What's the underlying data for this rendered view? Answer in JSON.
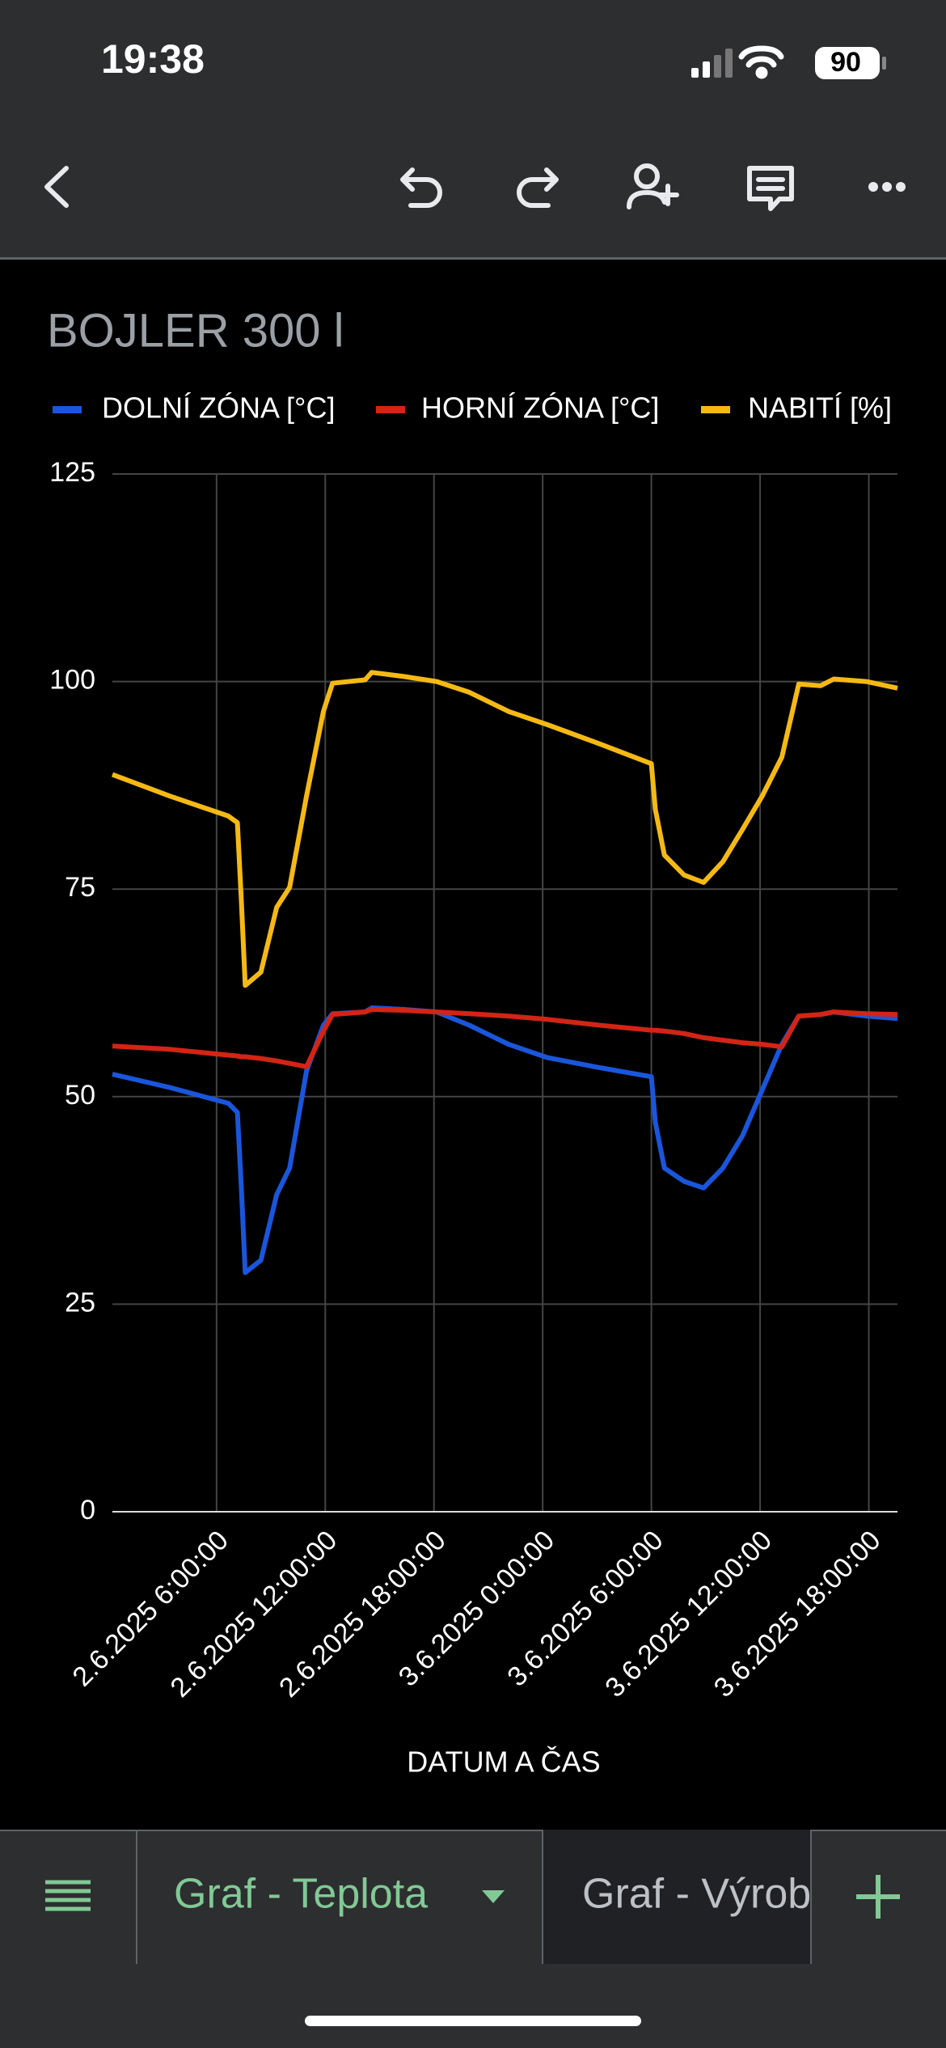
{
  "status_bar": {
    "time": "19:38",
    "battery": "90"
  },
  "chart_data": {
    "type": "line",
    "title": "BOJLER 300 l",
    "x_label": "DATUM A ČAS",
    "x": [
      "2025-06-02T00:15",
      "2025-06-02T03:25",
      "2025-06-02T06:39",
      "2025-06-02T07:09",
      "2025-06-02T07:22",
      "2025-06-02T07:35",
      "2025-06-02T08:27",
      "2025-06-02T09:19",
      "2025-06-02T10:02",
      "2025-06-02T10:58",
      "2025-06-02T11:54",
      "2025-06-02T12:24",
      "2025-06-02T14:12",
      "2025-06-02T14:34",
      "2025-06-02T16:21",
      "2025-06-02T18:09",
      "2025-06-02T19:57",
      "2025-06-02T22:07",
      "2025-06-03T00:16",
      "2025-06-03T03:08",
      "2025-06-03T06:00",
      "2025-06-03T06:13",
      "2025-06-03T06:43",
      "2025-06-03T07:48",
      "2025-06-03T08:53",
      "2025-06-03T09:57",
      "2025-06-03T11:02",
      "2025-06-03T12:07",
      "2025-06-03T13:12",
      "2025-06-03T14:08",
      "2025-06-03T15:21",
      "2025-06-03T16:04",
      "2025-06-03T17:52",
      "2025-06-03T19:35"
    ],
    "series": [
      {
        "name": "DOLNÍ ZÓNA [°C]",
        "color": "#1a56db",
        "values": [
          52.7,
          51.1,
          49.2,
          48.1,
          39,
          28.8,
          30.3,
          38.2,
          41.4,
          53.1,
          58.6,
          60,
          60.2,
          60.7,
          60.5,
          60.2,
          58.6,
          56.3,
          54.7,
          53.5,
          52.4,
          46.9,
          41.4,
          39.8,
          39,
          41.4,
          45.3,
          50.8,
          56.3,
          59.7,
          59.9,
          60.2,
          59.7,
          59.4
        ]
      },
      {
        "name": "HORNÍ ZÓNA [°C]",
        "color": "#d32415",
        "values": [
          56.1,
          55.7,
          55,
          54.9,
          54.8,
          54.8,
          54.6,
          54.3,
          54,
          53.6,
          57.9,
          59.9,
          60.2,
          60.5,
          60.4,
          60.2,
          60,
          59.7,
          59.3,
          58.6,
          58,
          58,
          57.9,
          57.6,
          57.1,
          56.8,
          56.5,
          56.3,
          56,
          59.7,
          59.9,
          60.2,
          60,
          59.9
        ]
      },
      {
        "name": "NABITÍ [%]",
        "color": "#f5b914",
        "values": [
          88.8,
          86.2,
          83.8,
          83,
          73.6,
          63.4,
          65,
          72.8,
          75.2,
          86.2,
          96.4,
          99.8,
          100.2,
          101.1,
          100.6,
          100,
          98.7,
          96.4,
          94.8,
          92.5,
          90.1,
          84.6,
          79.1,
          76.7,
          75.8,
          78.3,
          82.2,
          86.2,
          90.9,
          99.7,
          99.5,
          100.3,
          100,
          99.2
        ]
      }
    ],
    "xlim": [
      "2025-06-02T00:15",
      "2025-06-03T19:35"
    ],
    "xticks": [
      {
        "value": "2025-06-02T06:00",
        "label": "2.6.2025 6:00:00"
      },
      {
        "value": "2025-06-02T12:00",
        "label": "2.6.2025 12:00:00"
      },
      {
        "value": "2025-06-02T18:00",
        "label": "2.6.2025 18:00:00"
      },
      {
        "value": "2025-06-03T00:00",
        "label": "3.6.2025 0:00:00"
      },
      {
        "value": "2025-06-03T06:00",
        "label": "3.6.2025 6:00:00"
      },
      {
        "value": "2025-06-03T12:00",
        "label": "3.6.2025 12:00:00"
      },
      {
        "value": "2025-06-03T18:00",
        "label": "3.6.2025 18:00:00"
      }
    ],
    "ylim": [
      0,
      125
    ],
    "yticks": [
      0,
      25,
      50,
      75,
      100,
      125
    ],
    "grid": true,
    "legend": "top"
  },
  "tabs": [
    "Graf - Teplota",
    "Graf - Výrob"
  ]
}
